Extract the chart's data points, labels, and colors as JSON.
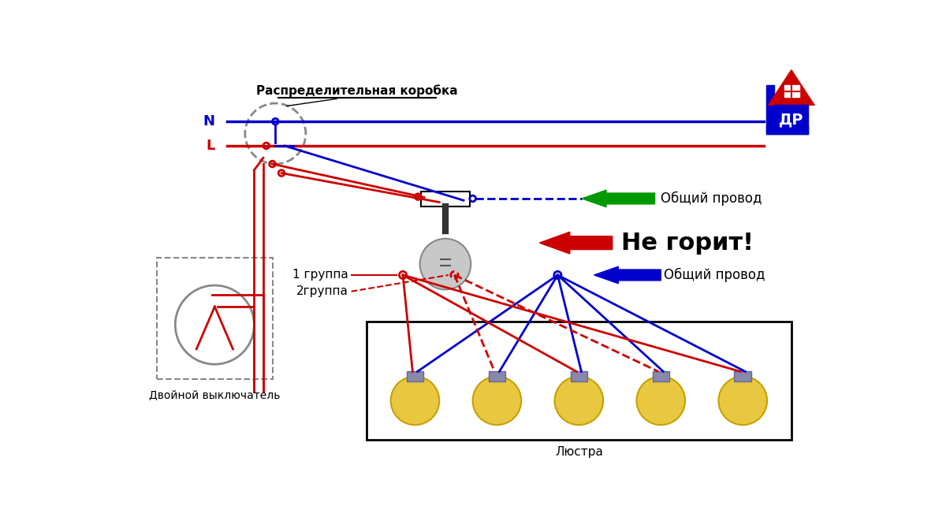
{
  "bg_color": "#ffffff",
  "blue": "#0000cc",
  "red": "#cc0000",
  "dark_red": "#990000",
  "green": "#009900",
  "gray": "#888888",
  "black": "#000000",
  "label_distrib": "Распределительная коробка",
  "label_N": "N",
  "label_L": "L",
  "label_switch": "Двойной выключатель",
  "label_common1": "Общий провод",
  "label_common2": "Общий провод",
  "label_not_burning": "Не горит!",
  "label_group1": "1 группа",
  "label_group2": "2группа",
  "label_chandelier": "Люстра",
  "lw": 2.0,
  "lw_thick": 2.2
}
